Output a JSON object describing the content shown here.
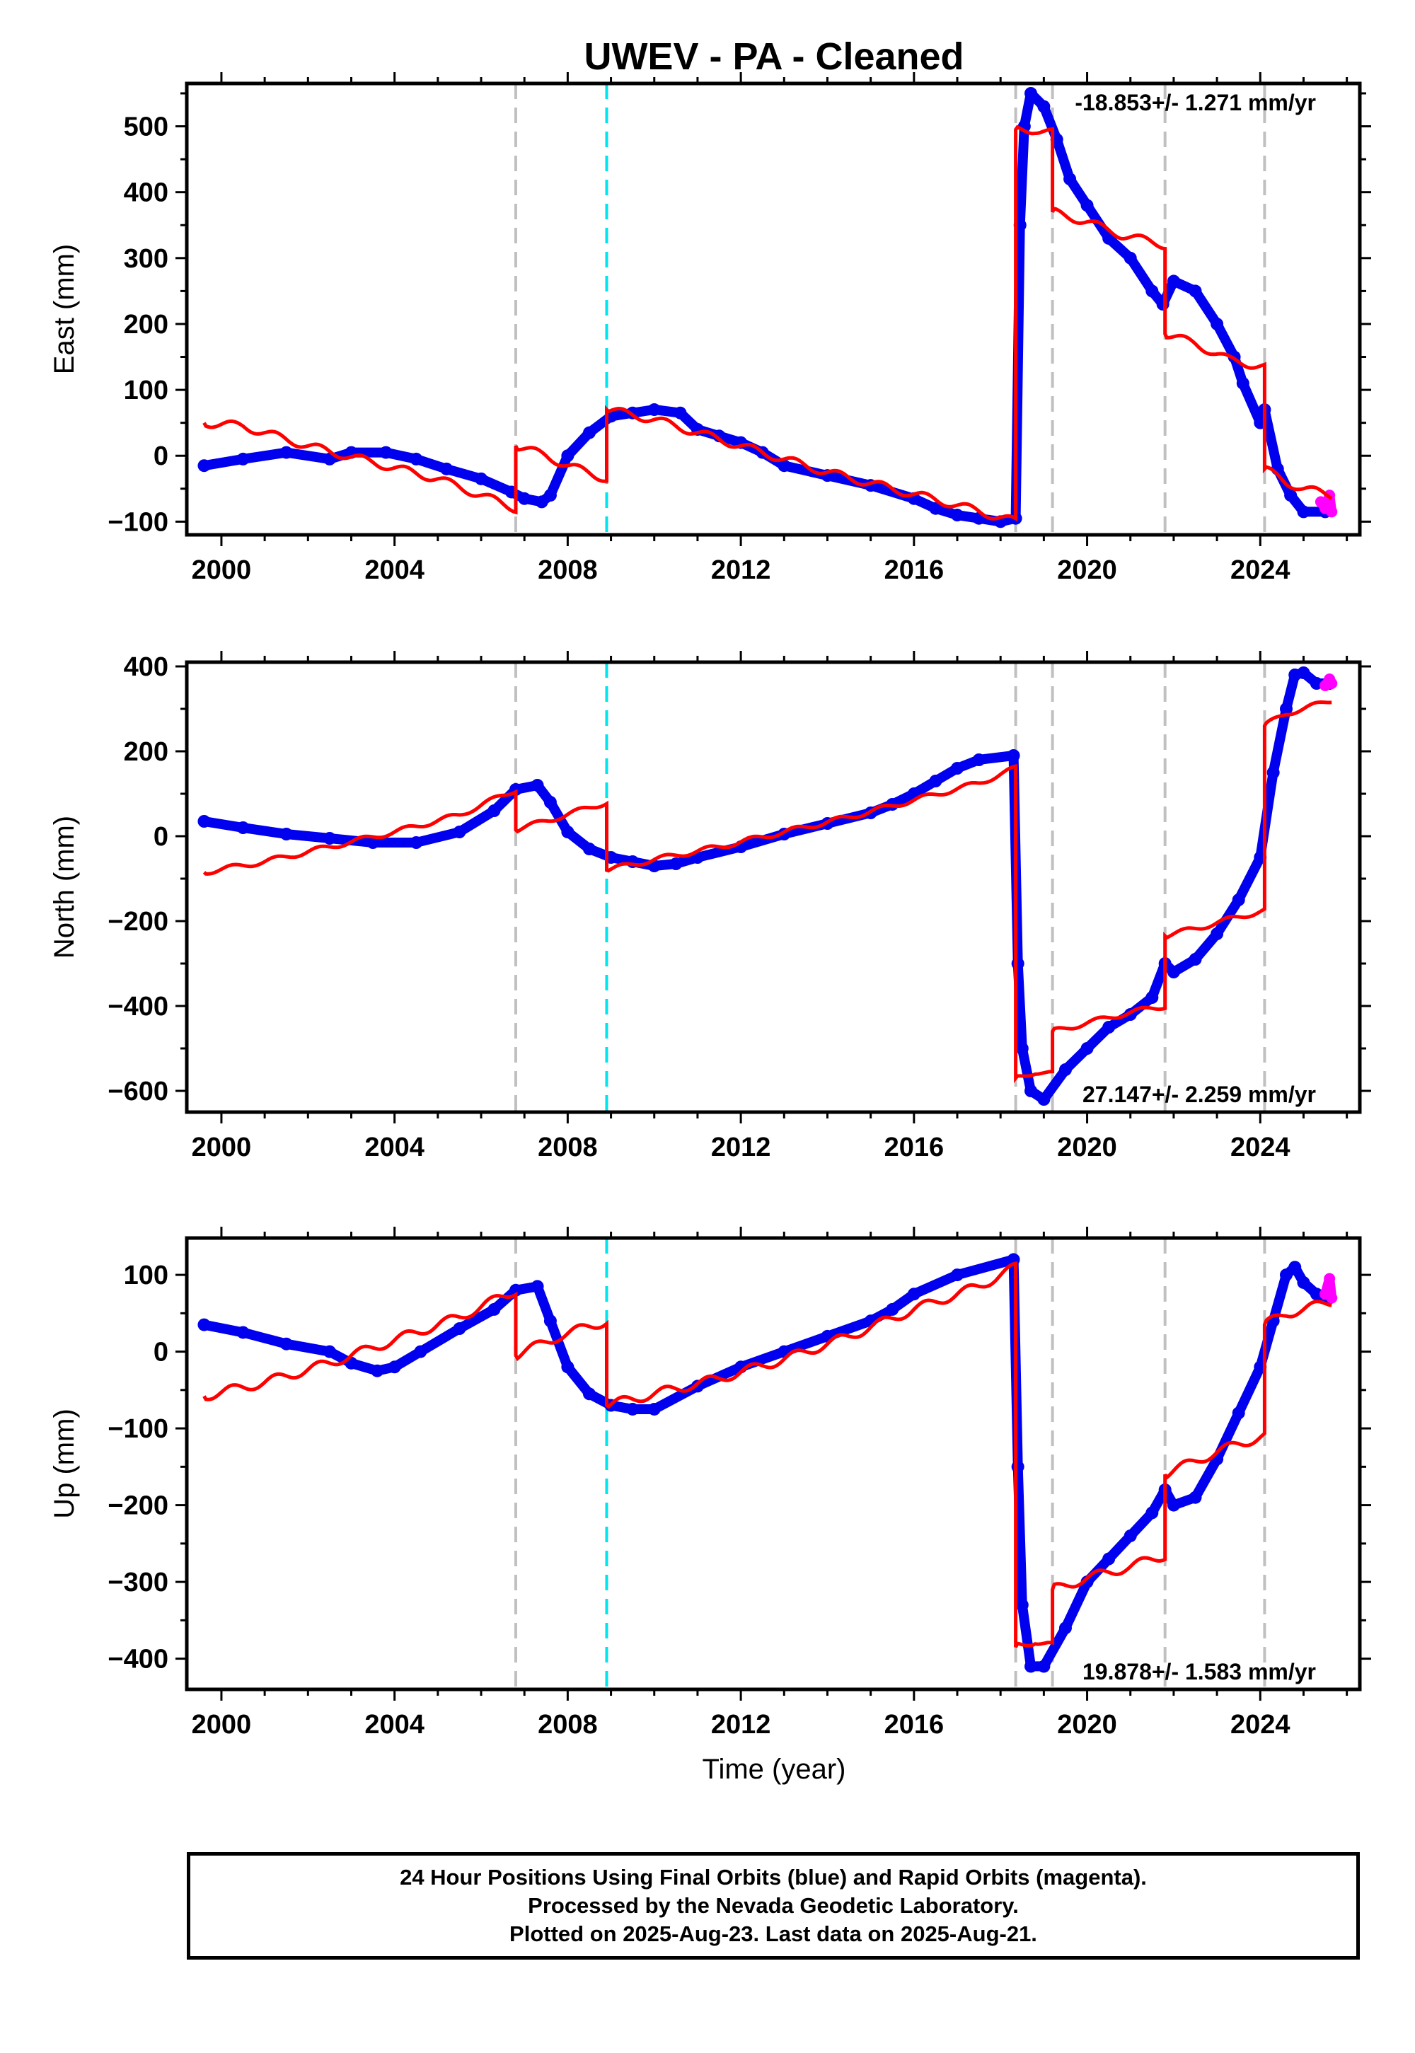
{
  "chart_data": {
    "title": "UWEV  - PA - Cleaned",
    "type": "scatter",
    "xlim": [
      1999.2,
      2026.3
    ],
    "xticks": [
      2000,
      2004,
      2008,
      2012,
      2016,
      2020,
      2024
    ],
    "xlabel": "Time (year)",
    "event_lines": {
      "gray_dashed": [
        2006.8,
        2018.35,
        2019.2,
        2021.8,
        2024.1
      ],
      "cyan_dashed": [
        2008.9
      ]
    },
    "colors": {
      "final_orbits": "#0000ee",
      "rapid_orbits": "#ff00ff",
      "model": "#ff0000",
      "event_line": "#c0c0c0",
      "cyan_line": "#00e5ee"
    },
    "panels": [
      {
        "ylabel": "East (mm)",
        "ylim": [
          -120,
          565
        ],
        "yticks": [
          -100,
          0,
          100,
          200,
          300,
          400,
          500
        ],
        "rate_text": "-18.853+/- 1.271 mm/yr",
        "rate_position": "top-right",
        "series": [
          {
            "name": "Final Orbits (blue)",
            "x": [
              1999.6,
              2000.5,
              2001.5,
              2002.5,
              2003.0,
              2003.8,
              2004.5,
              2005.2,
              2006.0,
              2006.7,
              2007.0,
              2007.4,
              2007.6,
              2008.0,
              2008.5,
              2009.0,
              2009.5,
              2010.0,
              2010.6,
              2011.0,
              2011.5,
              2012.0,
              2012.5,
              2013.0,
              2014.0,
              2015.0,
              2016.0,
              2016.5,
              2017.0,
              2017.5,
              2018.0,
              2018.35,
              2018.45,
              2018.55,
              2018.7,
              2019.0,
              2019.3,
              2019.6,
              2020.0,
              2020.5,
              2021.0,
              2021.5,
              2021.75,
              2022.0,
              2022.5,
              2023.0,
              2023.4,
              2023.6,
              2024.0,
              2024.1,
              2024.4,
              2024.7,
              2025.0,
              2025.5
            ],
            "y": [
              -15,
              -5,
              5,
              -5,
              5,
              5,
              -5,
              -20,
              -35,
              -55,
              -65,
              -70,
              -60,
              0,
              35,
              60,
              65,
              70,
              65,
              40,
              30,
              20,
              5,
              -15,
              -30,
              -45,
              -65,
              -80,
              -90,
              -95,
              -100,
              -95,
              350,
              500,
              550,
              530,
              480,
              420,
              380,
              330,
              300,
              250,
              230,
              265,
              250,
              200,
              150,
              110,
              50,
              70,
              -20,
              -60,
              -85,
              -85
            ]
          },
          {
            "name": "Rapid Orbits (magenta)",
            "x": [
              2025.4,
              2025.5,
              2025.6,
              2025.65
            ],
            "y": [
              -70,
              -80,
              -60,
              -85
            ]
          },
          {
            "name": "Model (red)",
            "x": [
              1999.6,
              2000.5,
              2002.0,
              2003.5,
              2005.0,
              2006.0,
              2006.8,
              2006.8,
              2007.5,
              2008.0,
              2008.9,
              2008.9,
              2010.0,
              2011.0,
              2012.5,
              2014.0,
              2015.5,
              2017.0,
              2018.35,
              2018.35,
              2018.8,
              2019.2,
              2019.2,
              2020.0,
              2020.8,
              2021.8,
              2021.8,
              2022.5,
              2023.3,
              2024.1,
              2024.1,
              2024.6,
              2025.0,
              2025.65
            ],
            "y": [
              50,
              45,
              15,
              -10,
              -35,
              -60,
              -80,
              15,
              0,
              -15,
              -35,
              70,
              55,
              35,
              5,
              -25,
              -50,
              -75,
              -100,
              495,
              495,
              490,
              370,
              355,
              335,
              320,
              185,
              170,
              145,
              135,
              -20,
              -40,
              -50,
              -60
            ]
          }
        ]
      },
      {
        "ylabel": "North (mm)",
        "ylim": [
          -650,
          410
        ],
        "yticks": [
          -600,
          -400,
          -200,
          0,
          200,
          400
        ],
        "rate_text": "27.147+/- 2.259 mm/yr",
        "rate_position": "bottom-right",
        "series": [
          {
            "name": "Final Orbits (blue)",
            "x": [
              1999.6,
              2000.5,
              2001.5,
              2002.5,
              2003.5,
              2004.5,
              2005.5,
              2006.3,
              2006.8,
              2007.3,
              2007.6,
              2008.0,
              2008.5,
              2009.0,
              2009.5,
              2010.0,
              2010.5,
              2011.0,
              2012.0,
              2013.0,
              2014.0,
              2015.0,
              2015.5,
              2016.0,
              2016.5,
              2017.0,
              2017.5,
              2018.3,
              2018.4,
              2018.5,
              2018.7,
              2019.0,
              2019.5,
              2020.0,
              2020.5,
              2021.0,
              2021.5,
              2021.8,
              2022.0,
              2022.5,
              2023.0,
              2023.5,
              2024.0,
              2024.3,
              2024.6,
              2024.8,
              2025.0,
              2025.3,
              2025.6
            ],
            "y": [
              35,
              20,
              5,
              -5,
              -15,
              -15,
              10,
              60,
              110,
              120,
              80,
              10,
              -30,
              -50,
              -60,
              -70,
              -65,
              -50,
              -25,
              5,
              30,
              55,
              75,
              100,
              130,
              160,
              180,
              190,
              -300,
              -500,
              -600,
              -620,
              -550,
              -500,
              -450,
              -420,
              -380,
              -300,
              -320,
              -290,
              -230,
              -150,
              -50,
              150,
              300,
              380,
              385,
              360,
              360
            ]
          },
          {
            "name": "Rapid Orbits (magenta)",
            "x": [
              2025.5,
              2025.6,
              2025.65
            ],
            "y": [
              355,
              370,
              360
            ]
          },
          {
            "name": "Model (red)",
            "x": [
              1999.6,
              2001.0,
              2002.5,
              2004.0,
              2005.5,
              2006.8,
              2006.8,
              2007.8,
              2008.9,
              2008.9,
              2010.0,
              2011.5,
              2013.0,
              2014.5,
              2016.0,
              2017.5,
              2018.35,
              2018.35,
              2018.8,
              2019.2,
              2019.2,
              2020.0,
              2021.0,
              2021.8,
              2021.8,
              2022.6,
              2023.5,
              2024.1,
              2024.1,
              2024.6,
              2025.0,
              2025.65
            ],
            "y": [
              -85,
              -60,
              -25,
              10,
              50,
              110,
              15,
              45,
              80,
              -80,
              -55,
              -25,
              10,
              45,
              85,
              125,
              160,
              -570,
              -555,
              -560,
              -460,
              -440,
              -415,
              -400,
              -235,
              -215,
              -190,
              -175,
              260,
              290,
              300,
              320
            ]
          }
        ]
      },
      {
        "ylabel": "Up (mm)",
        "ylim": [
          -440,
          148
        ],
        "yticks": [
          -400,
          -300,
          -200,
          -100,
          0,
          100
        ],
        "rate_text": "19.878+/- 1.583 mm/yr",
        "rate_position": "bottom-right",
        "series": [
          {
            "name": "Final Orbits (blue)",
            "x": [
              1999.6,
              2000.5,
              2001.5,
              2002.5,
              2003.0,
              2003.6,
              2004.0,
              2004.6,
              2005.5,
              2006.3,
              2006.8,
              2007.3,
              2007.6,
              2008.0,
              2008.5,
              2009.0,
              2009.5,
              2010.0,
              2011.0,
              2012.0,
              2013.0,
              2014.0,
              2015.0,
              2015.5,
              2016.0,
              2017.0,
              2018.3,
              2018.4,
              2018.5,
              2018.7,
              2019.0,
              2019.5,
              2020.0,
              2020.5,
              2021.0,
              2021.5,
              2021.8,
              2022.0,
              2022.5,
              2023.0,
              2023.5,
              2024.0,
              2024.3,
              2024.6,
              2024.8,
              2025.0,
              2025.3,
              2025.6
            ],
            "y": [
              35,
              25,
              10,
              0,
              -15,
              -25,
              -20,
              0,
              30,
              55,
              80,
              85,
              40,
              -20,
              -55,
              -70,
              -75,
              -75,
              -45,
              -20,
              0,
              20,
              40,
              55,
              75,
              100,
              120,
              -150,
              -330,
              -410,
              -410,
              -360,
              -300,
              -270,
              -240,
              -210,
              -180,
              -200,
              -190,
              -140,
              -80,
              -20,
              40,
              100,
              110,
              90,
              75,
              70
            ]
          },
          {
            "name": "Rapid Orbits (magenta)",
            "x": [
              2025.5,
              2025.6,
              2025.65
            ],
            "y": [
              75,
              95,
              70
            ]
          },
          {
            "name": "Model (red)",
            "x": [
              1999.6,
              2001.0,
              2002.5,
              2004.0,
              2005.5,
              2006.8,
              2006.8,
              2007.8,
              2008.9,
              2008.9,
              2010.0,
              2011.5,
              2013.0,
              2014.5,
              2016.0,
              2017.5,
              2018.35,
              2018.35,
              2018.8,
              2019.2,
              2019.2,
              2020.0,
              2021.0,
              2021.8,
              2021.8,
              2022.6,
              2023.5,
              2024.1,
              2024.1,
              2024.6,
              2025.0,
              2025.65
            ],
            "y": [
              -58,
              -40,
              -15,
              15,
              45,
              80,
              -5,
              20,
              40,
              -70,
              -55,
              -35,
              -10,
              20,
              55,
              85,
              110,
              -385,
              -375,
              -385,
              -310,
              -295,
              -280,
              -265,
              -160,
              -140,
              -120,
              -110,
              35,
              50,
              55,
              65
            ]
          }
        ]
      }
    ],
    "footer": [
      "24 Hour Positions Using Final Orbits (blue) and Rapid Orbits (magenta).",
      "Processed by the Nevada Geodetic Laboratory.",
      "Plotted on 2025-Aug-23. Last data on 2025-Aug-21."
    ]
  }
}
